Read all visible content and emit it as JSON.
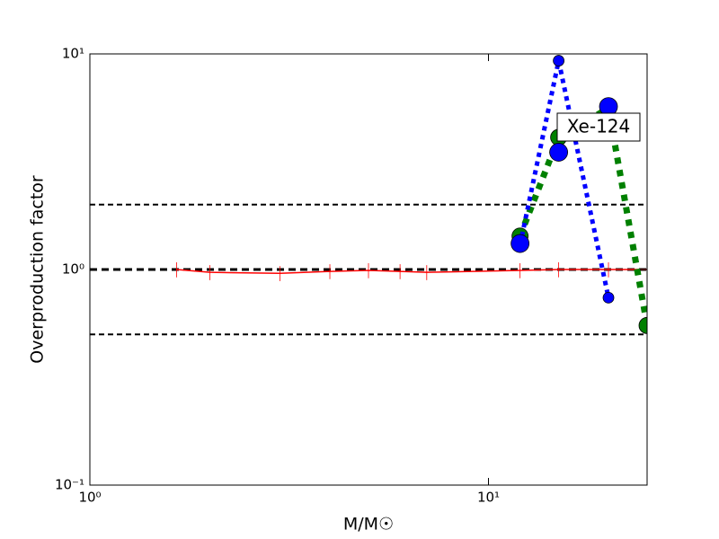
{
  "chart_data": {
    "type": "line",
    "xlabel": "M/M☉",
    "ylabel": "Overproduction factor",
    "annotation": "Xe-124",
    "xscale": "log",
    "yscale": "log",
    "xlim": [
      1,
      25
    ],
    "ylim": [
      0.1,
      10
    ],
    "xticks": [
      {
        "value": 1,
        "label": "10⁰"
      },
      {
        "value": 10,
        "label": "10¹"
      }
    ],
    "yticks": [
      {
        "value": 0.1,
        "label": "10⁻¹"
      },
      {
        "value": 1,
        "label": "10⁰"
      },
      {
        "value": 10,
        "label": "10¹"
      }
    ],
    "hlines": [
      2,
      1,
      0.5
    ],
    "series": [
      {
        "color": "#ff0000",
        "style": "solid",
        "x": [
          1.65,
          2,
          3,
          4,
          5,
          6,
          7,
          12,
          15,
          20,
          25
        ],
        "values": [
          1.0,
          0.97,
          0.96,
          0.98,
          0.99,
          0.98,
          0.97,
          0.99,
          1.0,
          1.0,
          1.0
        ],
        "errors": [
          0.08,
          0.08,
          0.08,
          0.08,
          0.08,
          0.08,
          0.08,
          0.08,
          0.08,
          0.08,
          0.08
        ]
      },
      {
        "color": "#008000",
        "style": "dotted-thick",
        "marker_size": 9,
        "x": [
          12,
          15,
          20,
          25
        ],
        "values": [
          1.43,
          4.1,
          5.6,
          0.55
        ]
      },
      {
        "color": "#0000ff",
        "style": "dotted",
        "marker_size": 6,
        "x": [
          12,
          15,
          20
        ],
        "values": [
          1.3,
          9.3,
          0.74
        ]
      },
      {
        "color": "#0000ff",
        "style": "none",
        "marker_size": 10,
        "x": [
          12,
          15,
          20
        ],
        "values": [
          1.32,
          3.5,
          5.7
        ]
      }
    ]
  }
}
